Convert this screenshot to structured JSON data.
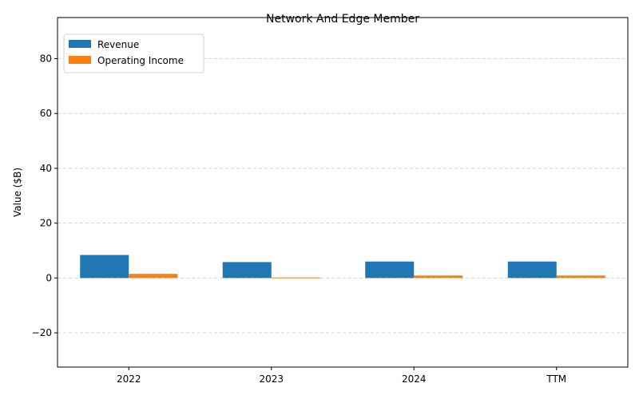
{
  "chart_data": {
    "type": "bar",
    "title": "Network And Edge Member",
    "xlabel": "",
    "ylabel": "Value ($B)",
    "categories": [
      "2022",
      "2023",
      "2024",
      "TTM"
    ],
    "series": [
      {
        "name": "Revenue",
        "values": [
          8.4,
          5.8,
          6.0,
          6.0
        ],
        "color": "#1f77b4"
      },
      {
        "name": "Operating Income",
        "values": [
          1.5,
          0.2,
          0.9,
          0.9
        ],
        "color": "#ff7f0e"
      }
    ],
    "ylim": [
      -32.5,
      95
    ],
    "yticks": [
      -20,
      0,
      20,
      40,
      60,
      80
    ],
    "ytick_labels": [
      "−20",
      "0",
      "20",
      "40",
      "60",
      "80"
    ],
    "grid": "y-dashed",
    "legend_position": "top-left"
  }
}
